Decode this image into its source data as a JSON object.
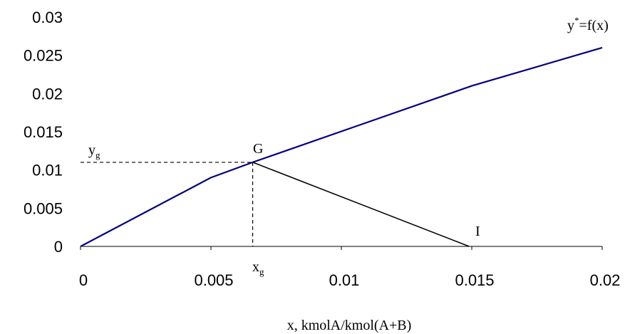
{
  "chart_data": {
    "type": "line",
    "title": "",
    "xlabel": "x, kmolA/kmol(A+B)",
    "ylabel": "",
    "xlim": [
      0,
      0.02
    ],
    "ylim": [
      0,
      0.03
    ],
    "x_ticks": [
      "0",
      "0.005",
      "0.01",
      "0.015",
      "0.02"
    ],
    "y_ticks": [
      "0",
      "0.005",
      "0.01",
      "0.015",
      "0.02",
      "0.025",
      "0.03"
    ],
    "grid": false,
    "series": [
      {
        "name": "y*=f(x)",
        "color": "#000080",
        "points": [
          [
            0,
            0
          ],
          [
            0.005,
            0.009
          ],
          [
            0.0066,
            0.011
          ],
          [
            0.015,
            0.021
          ],
          [
            0.02,
            0.026
          ]
        ]
      },
      {
        "name": "",
        "color": "#000000",
        "points": [
          [
            0.0066,
            0.011
          ],
          [
            0.0149,
            0.0
          ]
        ]
      }
    ],
    "guides": {
      "point": [
        0.0066,
        0.011
      ],
      "style": "dashed"
    },
    "annotations": {
      "curve_label_main": "y",
      "curve_label_sup": "*",
      "curve_label_rest": "=f(x)",
      "point_g": "G",
      "point_i": "I",
      "yg_main": "y",
      "yg_sub": "g",
      "xg_main": "x",
      "xg_sub": "g"
    }
  }
}
